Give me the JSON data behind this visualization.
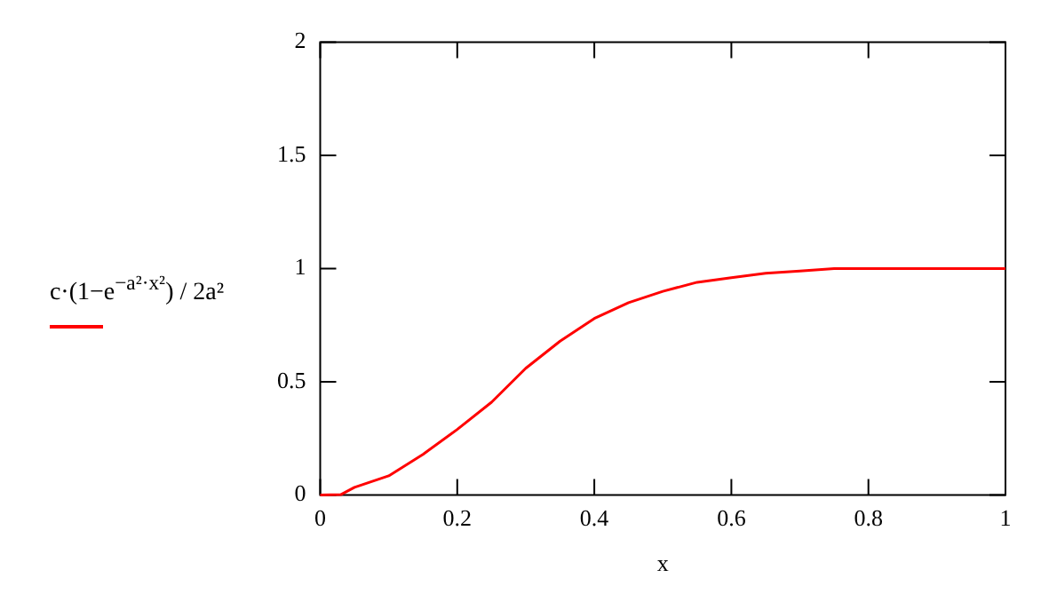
{
  "chart_data": {
    "type": "line",
    "xlabel": "x",
    "ylabel": "c·(1−e$^{−a²·x²}$) / 2a²",
    "x": [
      0,
      0.03,
      0.05,
      0.1,
      0.15,
      0.2,
      0.25,
      0.3,
      0.35,
      0.4,
      0.45,
      0.5,
      0.55,
      0.6,
      0.65,
      0.7,
      0.75,
      0.8,
      0.9,
      1
    ],
    "series": [
      {
        "color": "#ff0000",
        "values": [
          0,
          0.002,
          0.034,
          0.085,
          0.18,
          0.29,
          0.41,
          0.56,
          0.68,
          0.78,
          0.85,
          0.9,
          0.94,
          0.96,
          0.98,
          0.99,
          1,
          1,
          1,
          1
        ]
      }
    ],
    "xlim": [
      0,
      1
    ],
    "xticks": [
      0,
      0.2,
      0.4,
      0.6,
      0.8,
      1
    ],
    "ylim": [
      0,
      2
    ],
    "yticks": [
      0,
      0.5,
      1,
      1.5,
      2
    ],
    "grid": false,
    "marker": "none",
    "line_style": "solid"
  }
}
